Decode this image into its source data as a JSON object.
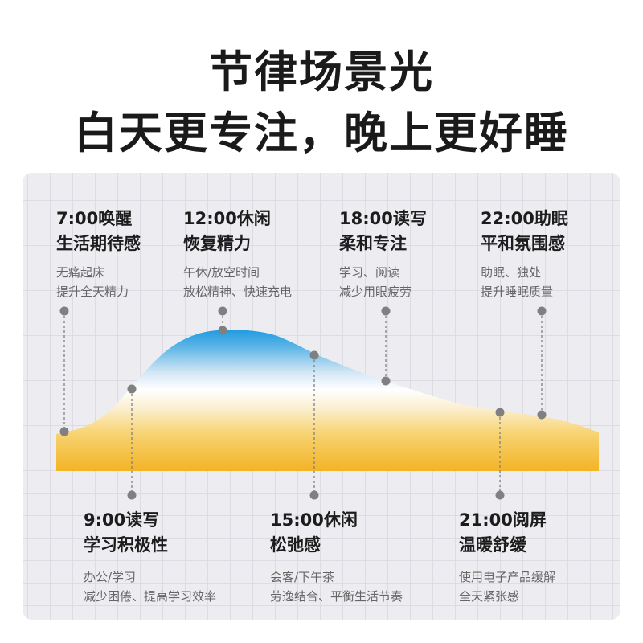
{
  "title": {
    "line1": "节律场景光",
    "line2": "白天更专注，晚上更好睡"
  },
  "top_labels": [
    {
      "time_title": "7:00唤醒",
      "title2": "生活期待感",
      "desc1": "无痛起床",
      "desc2": "提升全天精力"
    },
    {
      "time_title": "12:00休闲",
      "title2": "恢复精力",
      "desc1": "午休/放空时间",
      "desc2": "放松精神、快速充电"
    },
    {
      "time_title": "18:00读写",
      "title2": "柔和专注",
      "desc1": "学习、阅读",
      "desc2": "减少用眼疲劳"
    },
    {
      "time_title": "22:00助眠",
      "title2": "平和氛围感",
      "desc1": "助眠、独处",
      "desc2": "提升睡眠质量"
    }
  ],
  "bottom_labels": [
    {
      "time_title": "9:00读写",
      "title2": "学习积极性",
      "desc1": "办公/学习",
      "desc2": "减少困倦、提高学习效率"
    },
    {
      "time_title": "15:00休闲",
      "title2": "松弛感",
      "desc1": "会客/下午茶",
      "desc2": "劳逸结合、平衡生活节奏"
    },
    {
      "time_title": "21:00阅屏",
      "title2": "温暖舒缓",
      "desc1": "使用电子产品缓解",
      "desc2": "全天紧张感"
    }
  ],
  "colors": {
    "cool_blue": "#1f9be0",
    "warm_yellow": "#f4b324",
    "marker": "#808080",
    "panel_bg": "#ededf1"
  }
}
